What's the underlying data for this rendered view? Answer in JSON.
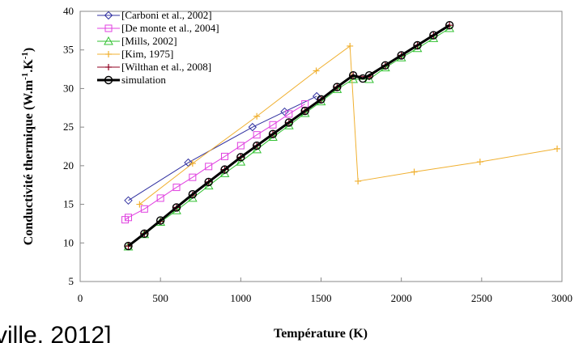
{
  "chart_data": {
    "type": "line",
    "xlabel": "Température (K)",
    "ylabel_main": "Conductivité thermique (W.m",
    "ylabel_sup1": "-1",
    "ylabel_mid": ".K",
    "ylabel_sup2": "-1",
    "ylabel_end": ")",
    "xlim": [
      0,
      3000
    ],
    "ylim": [
      5,
      40
    ],
    "xticks": [
      0,
      500,
      1000,
      1500,
      2000,
      2500,
      3000
    ],
    "yticks": [
      5,
      10,
      15,
      20,
      25,
      30,
      35,
      40
    ],
    "grid": false,
    "legend_position": "top-left",
    "series": [
      {
        "name": "[Carboni et al., 2002]",
        "color": "#3030a0",
        "marker": "diamond",
        "x": [
          300,
          673,
          1073,
          1273,
          1473
        ],
        "y": [
          15.5,
          20.4,
          25.0,
          27.0,
          29.0
        ]
      },
      {
        "name": "[De monte et al., 2004]",
        "color": "#e040e0",
        "marker": "square",
        "x": [
          280,
          300,
          400,
          500,
          600,
          700,
          800,
          900,
          1000,
          1100,
          1200,
          1300,
          1400
        ],
        "y": [
          13.0,
          13.3,
          14.4,
          15.8,
          17.2,
          18.5,
          19.9,
          21.2,
          22.6,
          24.0,
          25.3,
          26.7,
          28.0
        ]
      },
      {
        "name": "[Mills, 2002]",
        "color": "#30c030",
        "marker": "triangle",
        "x": [
          300,
          400,
          500,
          600,
          700,
          800,
          900,
          1000,
          1100,
          1200,
          1300,
          1400,
          1500,
          1600,
          1700,
          1800,
          1900,
          2000,
          2100,
          2200,
          2300
        ],
        "y": [
          9.5,
          11.1,
          12.7,
          14.2,
          15.8,
          17.4,
          19.0,
          20.5,
          22.1,
          23.7,
          25.2,
          26.8,
          28.3,
          29.9,
          31.2,
          31.2,
          32.7,
          34.0,
          35.2,
          36.5,
          37.8
        ]
      },
      {
        "name": "[Kim, 1975]",
        "color": "#f0b030",
        "marker": "plus",
        "x": [
          370,
          700,
          1100,
          1470,
          1680,
          1730,
          2080,
          2490,
          2970
        ],
        "y": [
          15.0,
          20.3,
          26.4,
          32.3,
          35.5,
          18.0,
          19.2,
          20.5,
          22.2
        ]
      },
      {
        "name": "[Wilthan et al., 2008]",
        "color": "#900020",
        "marker": "plus",
        "x": [
          300,
          400,
          500,
          600,
          700,
          800,
          900,
          1000,
          1100,
          1200,
          1300,
          1400,
          1500,
          1600,
          1700,
          1800,
          1900,
          2000,
          2100,
          2200,
          2300
        ],
        "y": [
          9.6,
          11.2,
          12.8,
          14.6,
          16.2,
          17.9,
          19.5,
          21.1,
          22.6,
          24.1,
          25.6,
          27.1,
          28.6,
          30.2,
          31.7,
          31.5,
          33.0,
          34.3,
          35.6,
          36.9,
          38.2
        ]
      },
      {
        "name": "simulation",
        "color": "#000000",
        "marker": "circle",
        "x": [
          300,
          400,
          500,
          600,
          700,
          800,
          900,
          1000,
          1100,
          1200,
          1300,
          1400,
          1500,
          1600,
          1700,
          1760,
          1800,
          1900,
          2000,
          2100,
          2200,
          2300
        ],
        "y": [
          9.6,
          11.2,
          12.9,
          14.6,
          16.3,
          17.9,
          19.5,
          21.1,
          22.6,
          24.1,
          25.6,
          27.1,
          28.6,
          30.2,
          31.7,
          31.3,
          31.7,
          33.0,
          34.3,
          35.6,
          36.9,
          38.2
        ]
      }
    ]
  },
  "cut_text": "ville, 2012]"
}
